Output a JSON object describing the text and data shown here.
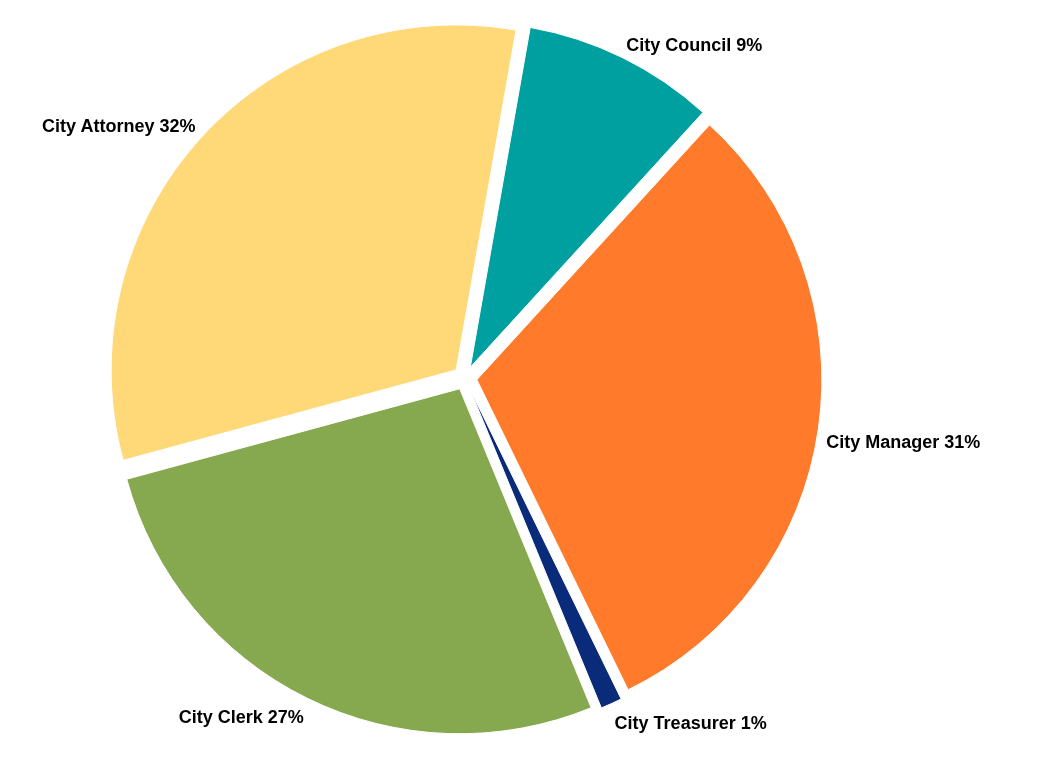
{
  "chart_data": {
    "type": "pie",
    "categories": [
      "City Council",
      "City Manager",
      "City Treasurer",
      "City Clerk",
      "City Attorney"
    ],
    "values": [
      9,
      31,
      1,
      27,
      32
    ],
    "value_labels": [
      "9%",
      "31%",
      "1%",
      "27%",
      "32%"
    ],
    "colors": [
      "#00a0a0",
      "#ff7a2a",
      "#0a2a7a",
      "#86a84e",
      "#ffd878"
    ]
  }
}
